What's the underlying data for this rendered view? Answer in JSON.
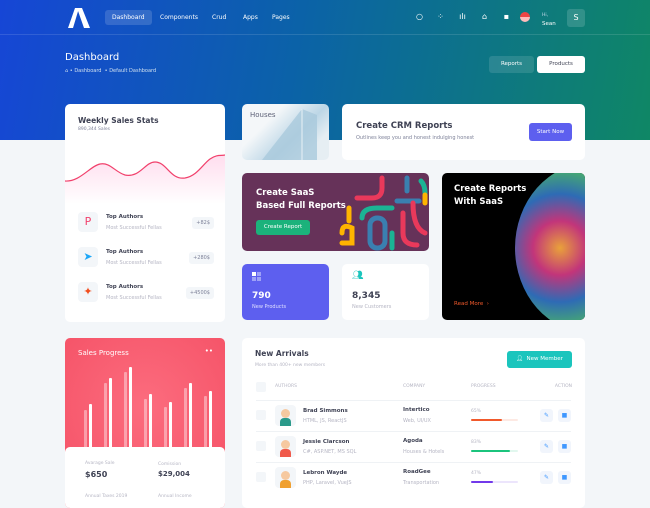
{
  "nav": {
    "items": [
      "Dashboard",
      "Components",
      "Crud",
      "Apps",
      "Pages"
    ],
    "greeting": "Hi,",
    "user": "Sean",
    "avatar_letter": "S"
  },
  "toolbar": {
    "title": "Dashboard",
    "breadcrumb": [
      "Dashboard",
      "Default Dashboard"
    ],
    "reports": "Reports",
    "products": "Products"
  },
  "weekly": {
    "title": "Weekly Sales Stats",
    "subtitle": "890,344 Sales",
    "authors": [
      {
        "name": "Top Authors",
        "desc": "Most Successful Fellas",
        "badge": "+82$",
        "icon": "p-logo-icon"
      },
      {
        "name": "Top Authors",
        "desc": "Most Successful Fellas",
        "badge": "+280$",
        "icon": "telegram-icon"
      },
      {
        "name": "Top Authors",
        "desc": "Most Successful Fellas",
        "badge": "+4500$",
        "icon": "figma-icon"
      }
    ]
  },
  "houses": {
    "label": "Houses"
  },
  "crm": {
    "title": "Create CRM Reports",
    "subtitle": "Outlines keep you and honest indulging honest",
    "button": "Start Now"
  },
  "saas": {
    "title1": "Create SaaS",
    "title2": "Based Full Reports",
    "button": "Create Report"
  },
  "reports": {
    "title1": "Create Reports",
    "title2": "With SaaS",
    "link": "Read More"
  },
  "products": {
    "value": "790",
    "label": "New Products"
  },
  "customers": {
    "value": "8,345",
    "label": "New Customers"
  },
  "sales": {
    "title": "Sales Progress",
    "stats": [
      {
        "label": "Avarage Sale",
        "value": "$650"
      },
      {
        "label": "Comission",
        "value": "$29,004"
      },
      {
        "label": "Annual Taxes 2019",
        "value": ""
      },
      {
        "label": "Annual Income",
        "value": ""
      }
    ]
  },
  "arrivals": {
    "title": "New Arrivals",
    "subtitle": "More than 400+ new members",
    "button": "New Member",
    "columns": [
      "AUTHORS",
      "COMPANY",
      "PROGRESS",
      "ACTION"
    ],
    "rows": [
      {
        "name": "Brad Simmons",
        "skills": "HTML, JS, ReactJS",
        "company": "Intertico",
        "type": "Web, UI/UX",
        "progress": 65,
        "color": "#f1592b"
      },
      {
        "name": "Jessie Clarcson",
        "skills": "C#, ASP.NET, MS SQL",
        "company": "Agoda",
        "type": "Houses & Hotels",
        "progress": 83,
        "color": "#1bc47d"
      },
      {
        "name": "Lebron Wayde",
        "skills": "PHP, Laravel, VueJS",
        "company": "RoadGee",
        "type": "Transportation",
        "progress": 47,
        "color": "#7239ea"
      }
    ]
  },
  "colors": {
    "primary": "#5d5fef",
    "success": "#1bc5bd",
    "danger": "#f65a6b",
    "saas_bg": "#663259"
  }
}
